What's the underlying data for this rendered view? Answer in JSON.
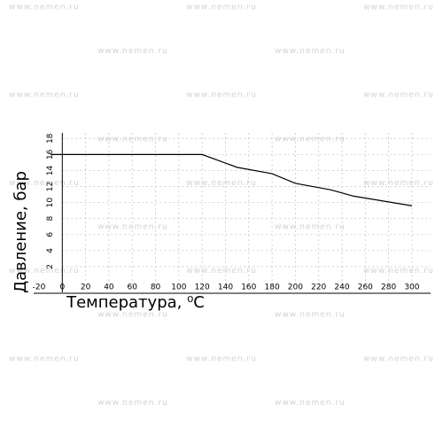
{
  "watermark": "www.nemen.ru",
  "chart_data": {
    "type": "line",
    "xlabel": "Температура, ⁰C",
    "ylabel": "Давление, бар",
    "x": [
      -10,
      120,
      150,
      180,
      200,
      230,
      250,
      300
    ],
    "series": [
      {
        "color": "#000000",
        "values": [
          16,
          16,
          14.4,
          13.6,
          12.4,
          11.6,
          10.8,
          9.6
        ]
      }
    ],
    "xlim": [
      -20,
      316
    ],
    "ylim": [
      0,
      18.7
    ],
    "xticks": [
      -20,
      0,
      20,
      40,
      60,
      80,
      100,
      120,
      140,
      160,
      180,
      200,
      220,
      240,
      260,
      280,
      300
    ],
    "yticks": [
      2,
      4,
      6,
      8,
      10,
      12,
      14,
      16,
      18
    ],
    "grid": true
  }
}
